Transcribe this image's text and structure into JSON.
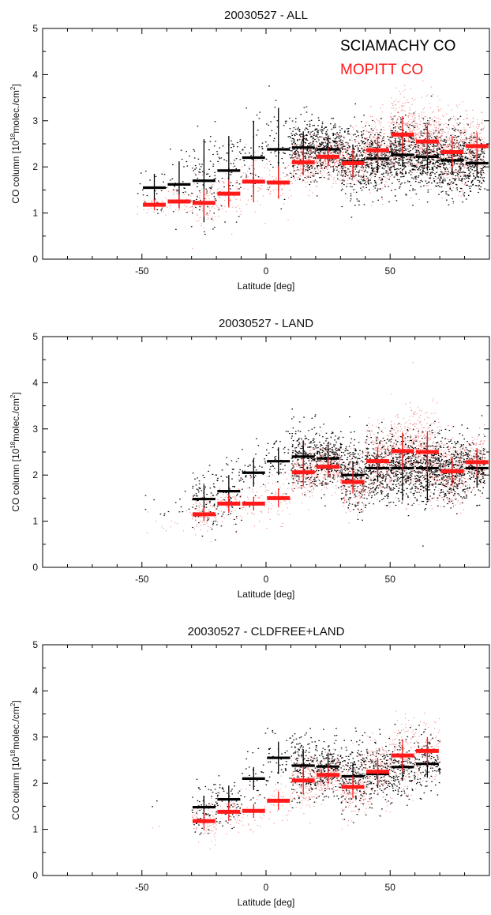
{
  "colors": {
    "sciamachy": "#000000",
    "mopitt": "#ff1a1a",
    "mopitt_scatter": "#f07070",
    "axes": "#000000"
  },
  "chart_data": [
    {
      "type": "scatter",
      "title": "20030527 - ALL",
      "xlabel": "Latitude [deg]",
      "ylabel_main": "CO column [10",
      "ylabel_sup": "18",
      "ylabel_mid": "molec./cm",
      "ylabel_sup2": "2",
      "ylabel_end": "]",
      "xlim": [
        -90,
        90
      ],
      "ylim": [
        0,
        5
      ],
      "xticks": [
        -50,
        0,
        50
      ],
      "yticks": [
        0,
        1,
        2,
        3,
        4,
        5
      ],
      "legend": [
        "SCIAMACHY CO",
        "MOPITT CO"
      ],
      "legend_position": "top-right",
      "series": [
        {
          "name": "SCIAMACHY CO",
          "bins": [
            {
              "lat": -45,
              "value": 1.55,
              "err": 0.3
            },
            {
              "lat": -35,
              "value": 1.62,
              "err": 0.5
            },
            {
              "lat": -25,
              "value": 1.7,
              "err": 0.9
            },
            {
              "lat": -15,
              "value": 1.92,
              "err": 0.75
            },
            {
              "lat": -5,
              "value": 2.2,
              "err": 0.8
            },
            {
              "lat": 5,
              "value": 2.38,
              "err": 0.9
            },
            {
              "lat": 15,
              "value": 2.42,
              "err": 0.35
            },
            {
              "lat": 25,
              "value": 2.38,
              "err": 0.3
            },
            {
              "lat": 35,
              "value": 2.12,
              "err": 0.35
            },
            {
              "lat": 45,
              "value": 2.18,
              "err": 0.3
            },
            {
              "lat": 55,
              "value": 2.26,
              "err": 0.25
            },
            {
              "lat": 65,
              "value": 2.22,
              "err": 0.3
            },
            {
              "lat": 75,
              "value": 2.14,
              "err": 0.3
            },
            {
              "lat": 85,
              "value": 2.08,
              "err": 0.3
            }
          ]
        },
        {
          "name": "MOPITT CO",
          "bins": [
            {
              "lat": -45,
              "value": 1.18,
              "err": 0.12
            },
            {
              "lat": -35,
              "value": 1.25,
              "err": 0.15
            },
            {
              "lat": -25,
              "value": 1.22,
              "err": 0.3
            },
            {
              "lat": -15,
              "value": 1.42,
              "err": 0.3
            },
            {
              "lat": -5,
              "value": 1.68,
              "err": 0.45
            },
            {
              "lat": 5,
              "value": 1.66,
              "err": 0.35
            },
            {
              "lat": 15,
              "value": 2.1,
              "err": 0.28
            },
            {
              "lat": 25,
              "value": 2.22,
              "err": 0.2
            },
            {
              "lat": 35,
              "value": 2.08,
              "err": 0.3
            },
            {
              "lat": 45,
              "value": 2.36,
              "err": 0.3
            },
            {
              "lat": 55,
              "value": 2.7,
              "err": 0.4
            },
            {
              "lat": 65,
              "value": 2.55,
              "err": 0.35
            },
            {
              "lat": 75,
              "value": 2.32,
              "err": 0.35
            },
            {
              "lat": 85,
              "value": 2.45,
              "err": 0.3
            }
          ]
        }
      ],
      "scatter_density": [
        {
          "from": -52,
          "to": -40,
          "n": 25,
          "sci": [
            1.55,
            0.3
          ],
          "mop": [
            1.18,
            0.12
          ]
        },
        {
          "from": -40,
          "to": -30,
          "n": 35,
          "sci": [
            1.62,
            0.4
          ],
          "mop": [
            1.25,
            0.15
          ]
        },
        {
          "from": -30,
          "to": -20,
          "n": 80,
          "sci": [
            1.7,
            0.45
          ],
          "mop": [
            1.22,
            0.28
          ]
        },
        {
          "from": -20,
          "to": -10,
          "n": 60,
          "sci": [
            1.9,
            0.45
          ],
          "mop": [
            1.42,
            0.3
          ]
        },
        {
          "from": -10,
          "to": 0,
          "n": 45,
          "sci": [
            2.2,
            0.45
          ],
          "mop": [
            1.68,
            0.35
          ]
        },
        {
          "from": 0,
          "to": 10,
          "n": 55,
          "sci": [
            2.38,
            0.45
          ],
          "mop": [
            1.66,
            0.3
          ]
        },
        {
          "from": 10,
          "to": 20,
          "n": 240,
          "sci": [
            2.42,
            0.35
          ],
          "mop": [
            2.1,
            0.25
          ]
        },
        {
          "from": 20,
          "to": 30,
          "n": 260,
          "sci": [
            2.38,
            0.3
          ],
          "mop": [
            2.22,
            0.22
          ]
        },
        {
          "from": 30,
          "to": 40,
          "n": 260,
          "sci": [
            2.12,
            0.4
          ],
          "mop": [
            2.08,
            0.3
          ]
        },
        {
          "from": 40,
          "to": 50,
          "n": 280,
          "sci": [
            2.18,
            0.35
          ],
          "mop": [
            2.36,
            0.35
          ]
        },
        {
          "from": 50,
          "to": 60,
          "n": 360,
          "sci": [
            2.26,
            0.35
          ],
          "mop": [
            2.7,
            0.45
          ]
        },
        {
          "from": 60,
          "to": 70,
          "n": 340,
          "sci": [
            2.22,
            0.35
          ],
          "mop": [
            2.55,
            0.4
          ]
        },
        {
          "from": 70,
          "to": 80,
          "n": 330,
          "sci": [
            2.14,
            0.35
          ],
          "mop": [
            2.32,
            0.4
          ]
        },
        {
          "from": 80,
          "to": 88,
          "n": 200,
          "sci": [
            2.08,
            0.3
          ],
          "mop": [
            2.45,
            0.35
          ]
        }
      ]
    },
    {
      "type": "scatter",
      "title": "20030527 - LAND",
      "xlabel": "Latitude [deg]",
      "ylabel_main": "CO column [10",
      "ylabel_sup": "18",
      "ylabel_mid": "molec./cm",
      "ylabel_sup2": "2",
      "ylabel_end": "]",
      "xlim": [
        -90,
        90
      ],
      "ylim": [
        0,
        5
      ],
      "xticks": [
        -50,
        0,
        50
      ],
      "yticks": [
        0,
        1,
        2,
        3,
        4,
        5
      ],
      "series": [
        {
          "name": "SCIAMACHY CO",
          "bins": [
            {
              "lat": -25,
              "value": 1.48,
              "err": 0.3
            },
            {
              "lat": -15,
              "value": 1.65,
              "err": 0.35
            },
            {
              "lat": -5,
              "value": 2.05,
              "err": 0.3
            },
            {
              "lat": 5,
              "value": 2.3,
              "err": 0.3
            },
            {
              "lat": 15,
              "value": 2.4,
              "err": 0.35
            },
            {
              "lat": 25,
              "value": 2.36,
              "err": 0.3
            },
            {
              "lat": 35,
              "value": 2.0,
              "err": 0.3
            },
            {
              "lat": 45,
              "value": 2.15,
              "err": 0.3
            },
            {
              "lat": 55,
              "value": 2.15,
              "err": 0.7
            },
            {
              "lat": 65,
              "value": 2.15,
              "err": 0.7
            },
            {
              "lat": 75,
              "value": 2.1,
              "err": 0.3
            },
            {
              "lat": 85,
              "value": 2.15,
              "err": 0.4
            }
          ]
        },
        {
          "name": "MOPITT CO",
          "bins": [
            {
              "lat": -25,
              "value": 1.15,
              "err": 0.15
            },
            {
              "lat": -15,
              "value": 1.38,
              "err": 0.2
            },
            {
              "lat": -5,
              "value": 1.38,
              "err": 0.15
            },
            {
              "lat": 5,
              "value": 1.5,
              "err": 0.2
            },
            {
              "lat": 15,
              "value": 2.06,
              "err": 0.3
            },
            {
              "lat": 25,
              "value": 2.18,
              "err": 0.2
            },
            {
              "lat": 35,
              "value": 1.85,
              "err": 0.25
            },
            {
              "lat": 45,
              "value": 2.3,
              "err": 0.3
            },
            {
              "lat": 55,
              "value": 2.52,
              "err": 0.4
            },
            {
              "lat": 65,
              "value": 2.5,
              "err": 0.45
            },
            {
              "lat": 75,
              "value": 2.08,
              "err": 0.3
            },
            {
              "lat": 85,
              "value": 2.28,
              "err": 0.3
            }
          ]
        }
      ],
      "scatter_density": [
        {
          "from": -50,
          "to": -40,
          "n": 6,
          "sci": [
            1.3,
            0.2
          ],
          "mop": [
            1.0,
            0.15
          ]
        },
        {
          "from": -40,
          "to": -30,
          "n": 8,
          "sci": [
            1.3,
            0.2
          ],
          "mop": [
            1.05,
            0.15
          ]
        },
        {
          "from": -30,
          "to": -20,
          "n": 90,
          "sci": [
            1.48,
            0.3
          ],
          "mop": [
            1.15,
            0.2
          ]
        },
        {
          "from": -20,
          "to": -10,
          "n": 70,
          "sci": [
            1.65,
            0.35
          ],
          "mop": [
            1.38,
            0.25
          ]
        },
        {
          "from": -10,
          "to": 0,
          "n": 40,
          "sci": [
            2.05,
            0.35
          ],
          "mop": [
            1.38,
            0.2
          ]
        },
        {
          "from": 0,
          "to": 10,
          "n": 55,
          "sci": [
            2.3,
            0.35
          ],
          "mop": [
            1.5,
            0.25
          ]
        },
        {
          "from": 10,
          "to": 20,
          "n": 220,
          "sci": [
            2.4,
            0.35
          ],
          "mop": [
            2.06,
            0.3
          ]
        },
        {
          "from": 20,
          "to": 30,
          "n": 240,
          "sci": [
            2.36,
            0.3
          ],
          "mop": [
            2.18,
            0.22
          ]
        },
        {
          "from": 30,
          "to": 40,
          "n": 240,
          "sci": [
            2.0,
            0.4
          ],
          "mop": [
            1.85,
            0.3
          ]
        },
        {
          "from": 40,
          "to": 50,
          "n": 260,
          "sci": [
            2.15,
            0.35
          ],
          "mop": [
            2.3,
            0.35
          ]
        },
        {
          "from": 50,
          "to": 60,
          "n": 320,
          "sci": [
            2.15,
            0.35
          ],
          "mop": [
            2.52,
            0.45
          ]
        },
        {
          "from": 60,
          "to": 70,
          "n": 320,
          "sci": [
            2.15,
            0.35
          ],
          "mop": [
            2.5,
            0.45
          ]
        },
        {
          "from": 70,
          "to": 80,
          "n": 300,
          "sci": [
            2.1,
            0.35
          ],
          "mop": [
            2.08,
            0.35
          ]
        },
        {
          "from": 80,
          "to": 88,
          "n": 180,
          "sci": [
            2.15,
            0.3
          ],
          "mop": [
            2.28,
            0.3
          ]
        }
      ]
    },
    {
      "type": "scatter",
      "title": "20030527 - CLDFREE+LAND",
      "xlabel": "Latitude [deg]",
      "ylabel_main": "CO column [10",
      "ylabel_sup": "18",
      "ylabel_mid": "molec./cm",
      "ylabel_sup2": "2",
      "ylabel_end": "]",
      "xlim": [
        -90,
        90
      ],
      "ylim": [
        0,
        5
      ],
      "xticks": [
        -50,
        0,
        50
      ],
      "yticks": [
        0,
        1,
        2,
        3,
        4,
        5
      ],
      "series": [
        {
          "name": "SCIAMACHY CO",
          "bins": [
            {
              "lat": -25,
              "value": 1.48,
              "err": 0.25
            },
            {
              "lat": -15,
              "value": 1.65,
              "err": 0.3
            },
            {
              "lat": -5,
              "value": 2.1,
              "err": 0.25
            },
            {
              "lat": 5,
              "value": 2.55,
              "err": 0.35
            },
            {
              "lat": 15,
              "value": 2.38,
              "err": 0.35
            },
            {
              "lat": 25,
              "value": 2.36,
              "err": 0.3
            },
            {
              "lat": 35,
              "value": 2.15,
              "err": 0.3
            },
            {
              "lat": 45,
              "value": 2.2,
              "err": 0.3
            },
            {
              "lat": 55,
              "value": 2.35,
              "err": 0.3
            },
            {
              "lat": 65,
              "value": 2.42,
              "err": 0.3
            }
          ]
        },
        {
          "name": "MOPITT CO",
          "bins": [
            {
              "lat": -25,
              "value": 1.18,
              "err": 0.2
            },
            {
              "lat": -15,
              "value": 1.38,
              "err": 0.2
            },
            {
              "lat": -5,
              "value": 1.4,
              "err": 0.15
            },
            {
              "lat": 5,
              "value": 1.62,
              "err": 0.2
            },
            {
              "lat": 15,
              "value": 2.06,
              "err": 0.3
            },
            {
              "lat": 25,
              "value": 2.18,
              "err": 0.2
            },
            {
              "lat": 35,
              "value": 1.92,
              "err": 0.25
            },
            {
              "lat": 45,
              "value": 2.25,
              "err": 0.3
            },
            {
              "lat": 55,
              "value": 2.6,
              "err": 0.35
            },
            {
              "lat": 65,
              "value": 2.7,
              "err": 0.3
            }
          ]
        }
      ],
      "scatter_density": [
        {
          "from": -46,
          "to": -42,
          "n": 2,
          "sci": [
            1.7,
            0.1
          ],
          "mop": [
            1.05,
            0.05
          ]
        },
        {
          "from": -30,
          "to": -20,
          "n": 70,
          "sci": [
            1.48,
            0.3
          ],
          "mop": [
            1.18,
            0.2
          ]
        },
        {
          "from": -20,
          "to": -10,
          "n": 55,
          "sci": [
            1.65,
            0.3
          ],
          "mop": [
            1.38,
            0.25
          ]
        },
        {
          "from": -10,
          "to": 0,
          "n": 30,
          "sci": [
            2.1,
            0.3
          ],
          "mop": [
            1.4,
            0.2
          ]
        },
        {
          "from": 0,
          "to": 10,
          "n": 40,
          "sci": [
            2.55,
            0.35
          ],
          "mop": [
            1.62,
            0.25
          ]
        },
        {
          "from": 10,
          "to": 20,
          "n": 170,
          "sci": [
            2.38,
            0.35
          ],
          "mop": [
            2.06,
            0.3
          ]
        },
        {
          "from": 20,
          "to": 30,
          "n": 190,
          "sci": [
            2.36,
            0.3
          ],
          "mop": [
            2.18,
            0.22
          ]
        },
        {
          "from": 30,
          "to": 40,
          "n": 180,
          "sci": [
            2.15,
            0.35
          ],
          "mop": [
            1.92,
            0.3
          ]
        },
        {
          "from": 40,
          "to": 50,
          "n": 170,
          "sci": [
            2.2,
            0.35
          ],
          "mop": [
            2.25,
            0.35
          ]
        },
        {
          "from": 50,
          "to": 60,
          "n": 150,
          "sci": [
            2.35,
            0.35
          ],
          "mop": [
            2.6,
            0.4
          ]
        },
        {
          "from": 60,
          "to": 70,
          "n": 120,
          "sci": [
            2.42,
            0.35
          ],
          "mop": [
            2.7,
            0.35
          ]
        }
      ]
    }
  ]
}
